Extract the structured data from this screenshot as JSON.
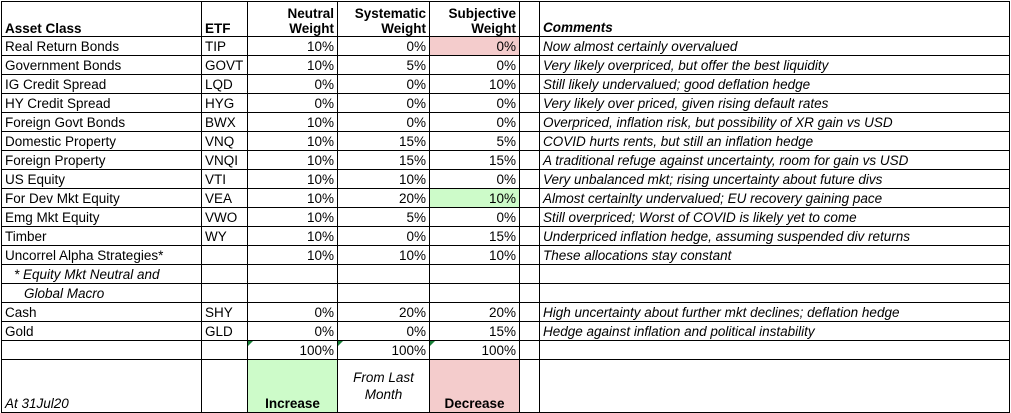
{
  "headers": {
    "asset_class": "Asset Class",
    "etf": "ETF",
    "neutral": [
      "Neutral",
      "Weight"
    ],
    "systematic": [
      "Systematic",
      "Weight"
    ],
    "subjective": [
      "Subjective",
      "Weight"
    ],
    "comments": "Comments"
  },
  "rows": [
    {
      "asset": "Real Return Bonds",
      "etf": "TIP",
      "neutral": "10%",
      "systematic": "0%",
      "subjective": "0%",
      "comment": "Now almost certainly overvalued"
    },
    {
      "asset": "Government Bonds",
      "etf": "GOVT",
      "neutral": "10%",
      "systematic": "5%",
      "subjective": "0%",
      "comment": "Very likely overpriced, but offer the best liquidity"
    },
    {
      "asset": "IG Credit Spread",
      "etf": "LQD",
      "neutral": "0%",
      "systematic": "0%",
      "subjective": "10%",
      "comment": "Still likely undervalued; good deflation hedge"
    },
    {
      "asset": "HY Credit Spread",
      "etf": "HYG",
      "neutral": "0%",
      "systematic": "0%",
      "subjective": "0%",
      "comment": "Very likely over priced, given rising default rates"
    },
    {
      "asset": "Foreign Govt Bonds",
      "etf": "BWX",
      "neutral": "10%",
      "systematic": "0%",
      "subjective": "0%",
      "comment": "Overpriced, inflation risk, but possibility of XR gain vs USD"
    },
    {
      "asset": "Domestic Property",
      "etf": "VNQ",
      "neutral": "10%",
      "systematic": "15%",
      "subjective": "5%",
      "comment": "COVID hurts rents, but still an inflation hedge"
    },
    {
      "asset": "Foreign Property",
      "etf": "VNQI",
      "neutral": "10%",
      "systematic": "15%",
      "subjective": "15%",
      "comment": "A traditional refuge against uncertainty, room for gain vs USD"
    },
    {
      "asset": "US Equity",
      "etf": "VTI",
      "neutral": "10%",
      "systematic": "10%",
      "subjective": "0%",
      "comment": "Very unbalanced mkt; rising uncertainty about future divs"
    },
    {
      "asset": "For Dev Mkt Equity",
      "etf": "VEA",
      "neutral": "10%",
      "systematic": "20%",
      "subjective": "10%",
      "comment": "Almost certainlty undervalued; EU recovery gaining pace"
    },
    {
      "asset": "Emg Mkt Equity",
      "etf": "VWO",
      "neutral": "10%",
      "systematic": "5%",
      "subjective": "0%",
      "comment": "Still overpriced; Worst of COVID is likely yet to come"
    },
    {
      "asset": "Timber",
      "etf": "WY",
      "neutral": "10%",
      "systematic": "0%",
      "subjective": "15%",
      "comment": "Underpriced inflation hedge, assuming suspended div returns"
    },
    {
      "asset": "Uncorrel Alpha Strategies*",
      "etf": "",
      "neutral": "10%",
      "systematic": "10%",
      "subjective": "10%",
      "comment": "These allocations stay constant"
    }
  ],
  "footnote": [
    "* Equity Mkt Neutral and",
    "Global Macro"
  ],
  "rows2": [
    {
      "asset": "Cash",
      "etf": "SHY",
      "neutral": "0%",
      "systematic": "20%",
      "subjective": "20%",
      "comment": "High uncertainty about further mkt declines; deflation hedge"
    },
    {
      "asset": "Gold",
      "etf": "GLD",
      "neutral": "0%",
      "systematic": "0%",
      "subjective": "15%",
      "comment": "Hedge against inflation and political instability"
    }
  ],
  "totals": {
    "neutral": "100%",
    "systematic": "100%",
    "subjective": "100%"
  },
  "legend": {
    "date": "At 31Jul20",
    "increase": "Increase",
    "from_last": [
      "From Last",
      "Month"
    ],
    "decrease": "Decrease"
  },
  "colors": {
    "increase": "#cdfbc9",
    "decrease": "#f4cccc",
    "formula_marker": "#188038"
  }
}
